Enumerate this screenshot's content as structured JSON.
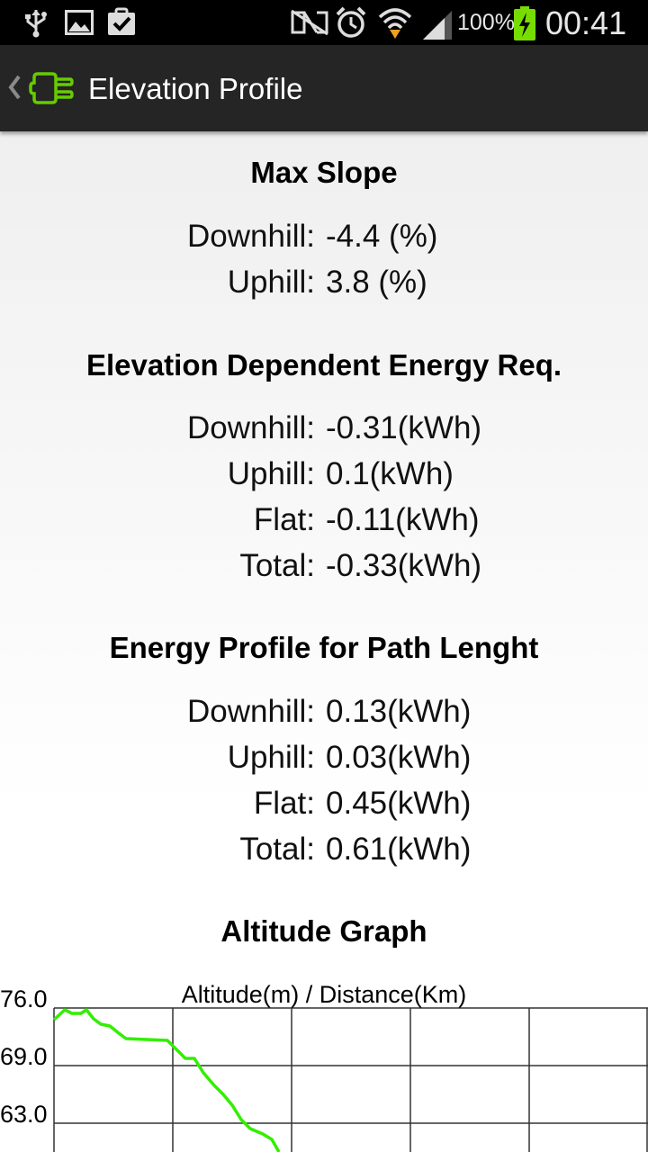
{
  "status_bar": {
    "battery_percent": "100%",
    "clock": "00:41",
    "icons": [
      "usb-icon",
      "image-icon",
      "clipboard-check-icon",
      "nfc-icon",
      "alarm-icon",
      "wifi-icon",
      "signal-icon",
      "battery-charging-icon"
    ]
  },
  "action_bar": {
    "title": "Elevation Profile",
    "icons": [
      "back-chevron-icon",
      "app-plug-icon"
    ],
    "accent_color": "#66cc00"
  },
  "max_slope": {
    "title": "Max Slope",
    "rows": [
      {
        "label": "Downhill:",
        "value": "-4.4 (%)"
      },
      {
        "label": "Uphill:",
        "value": "3.8 (%)"
      }
    ]
  },
  "elevation_energy": {
    "title": "Elevation Dependent Energy Req.",
    "rows": [
      {
        "label": "Downhill:",
        "value": "-0.31(kWh)"
      },
      {
        "label": "Uphill:",
        "value": "0.1(kWh)"
      },
      {
        "label": "Flat:",
        "value": "-0.11(kWh)"
      },
      {
        "label": "Total:",
        "value": "-0.33(kWh)"
      }
    ]
  },
  "path_energy": {
    "title": "Energy Profile for Path Lenght",
    "rows": [
      {
        "label": "Downhill:",
        "value": "0.13(kWh)"
      },
      {
        "label": "Uphill:",
        "value": "0.03(kWh)"
      },
      {
        "label": "Flat:",
        "value": "0.45(kWh)"
      },
      {
        "label": "Total:",
        "value": "0.61(kWh)"
      }
    ]
  },
  "altitude_graph": {
    "title": "Altitude Graph",
    "axis_title": "Altitude(m) / Distance(Km)",
    "y_ticks": [
      "76.0",
      "69.0",
      "63.0"
    ],
    "line_color": "#33ee00",
    "grid_color": "#333333"
  }
}
